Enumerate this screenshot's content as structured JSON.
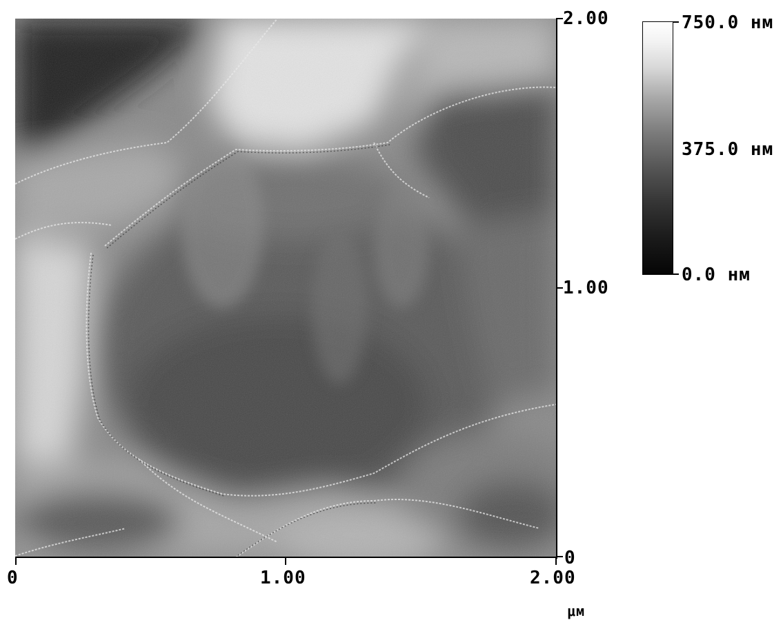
{
  "image": {
    "description_icon": "afm-topography-image",
    "colormap": [
      "#000000",
      "#ffffff"
    ]
  },
  "y_axis": {
    "ticks": [
      "2.00",
      "1.00",
      "0"
    ]
  },
  "x_axis": {
    "ticks": [
      "0",
      "1.00",
      "2.00"
    ],
    "unit": "μм"
  },
  "colorbar": {
    "max_label": "750.0 нм",
    "mid_label": "375.0 нм",
    "min_label": "0.0 нм"
  }
}
